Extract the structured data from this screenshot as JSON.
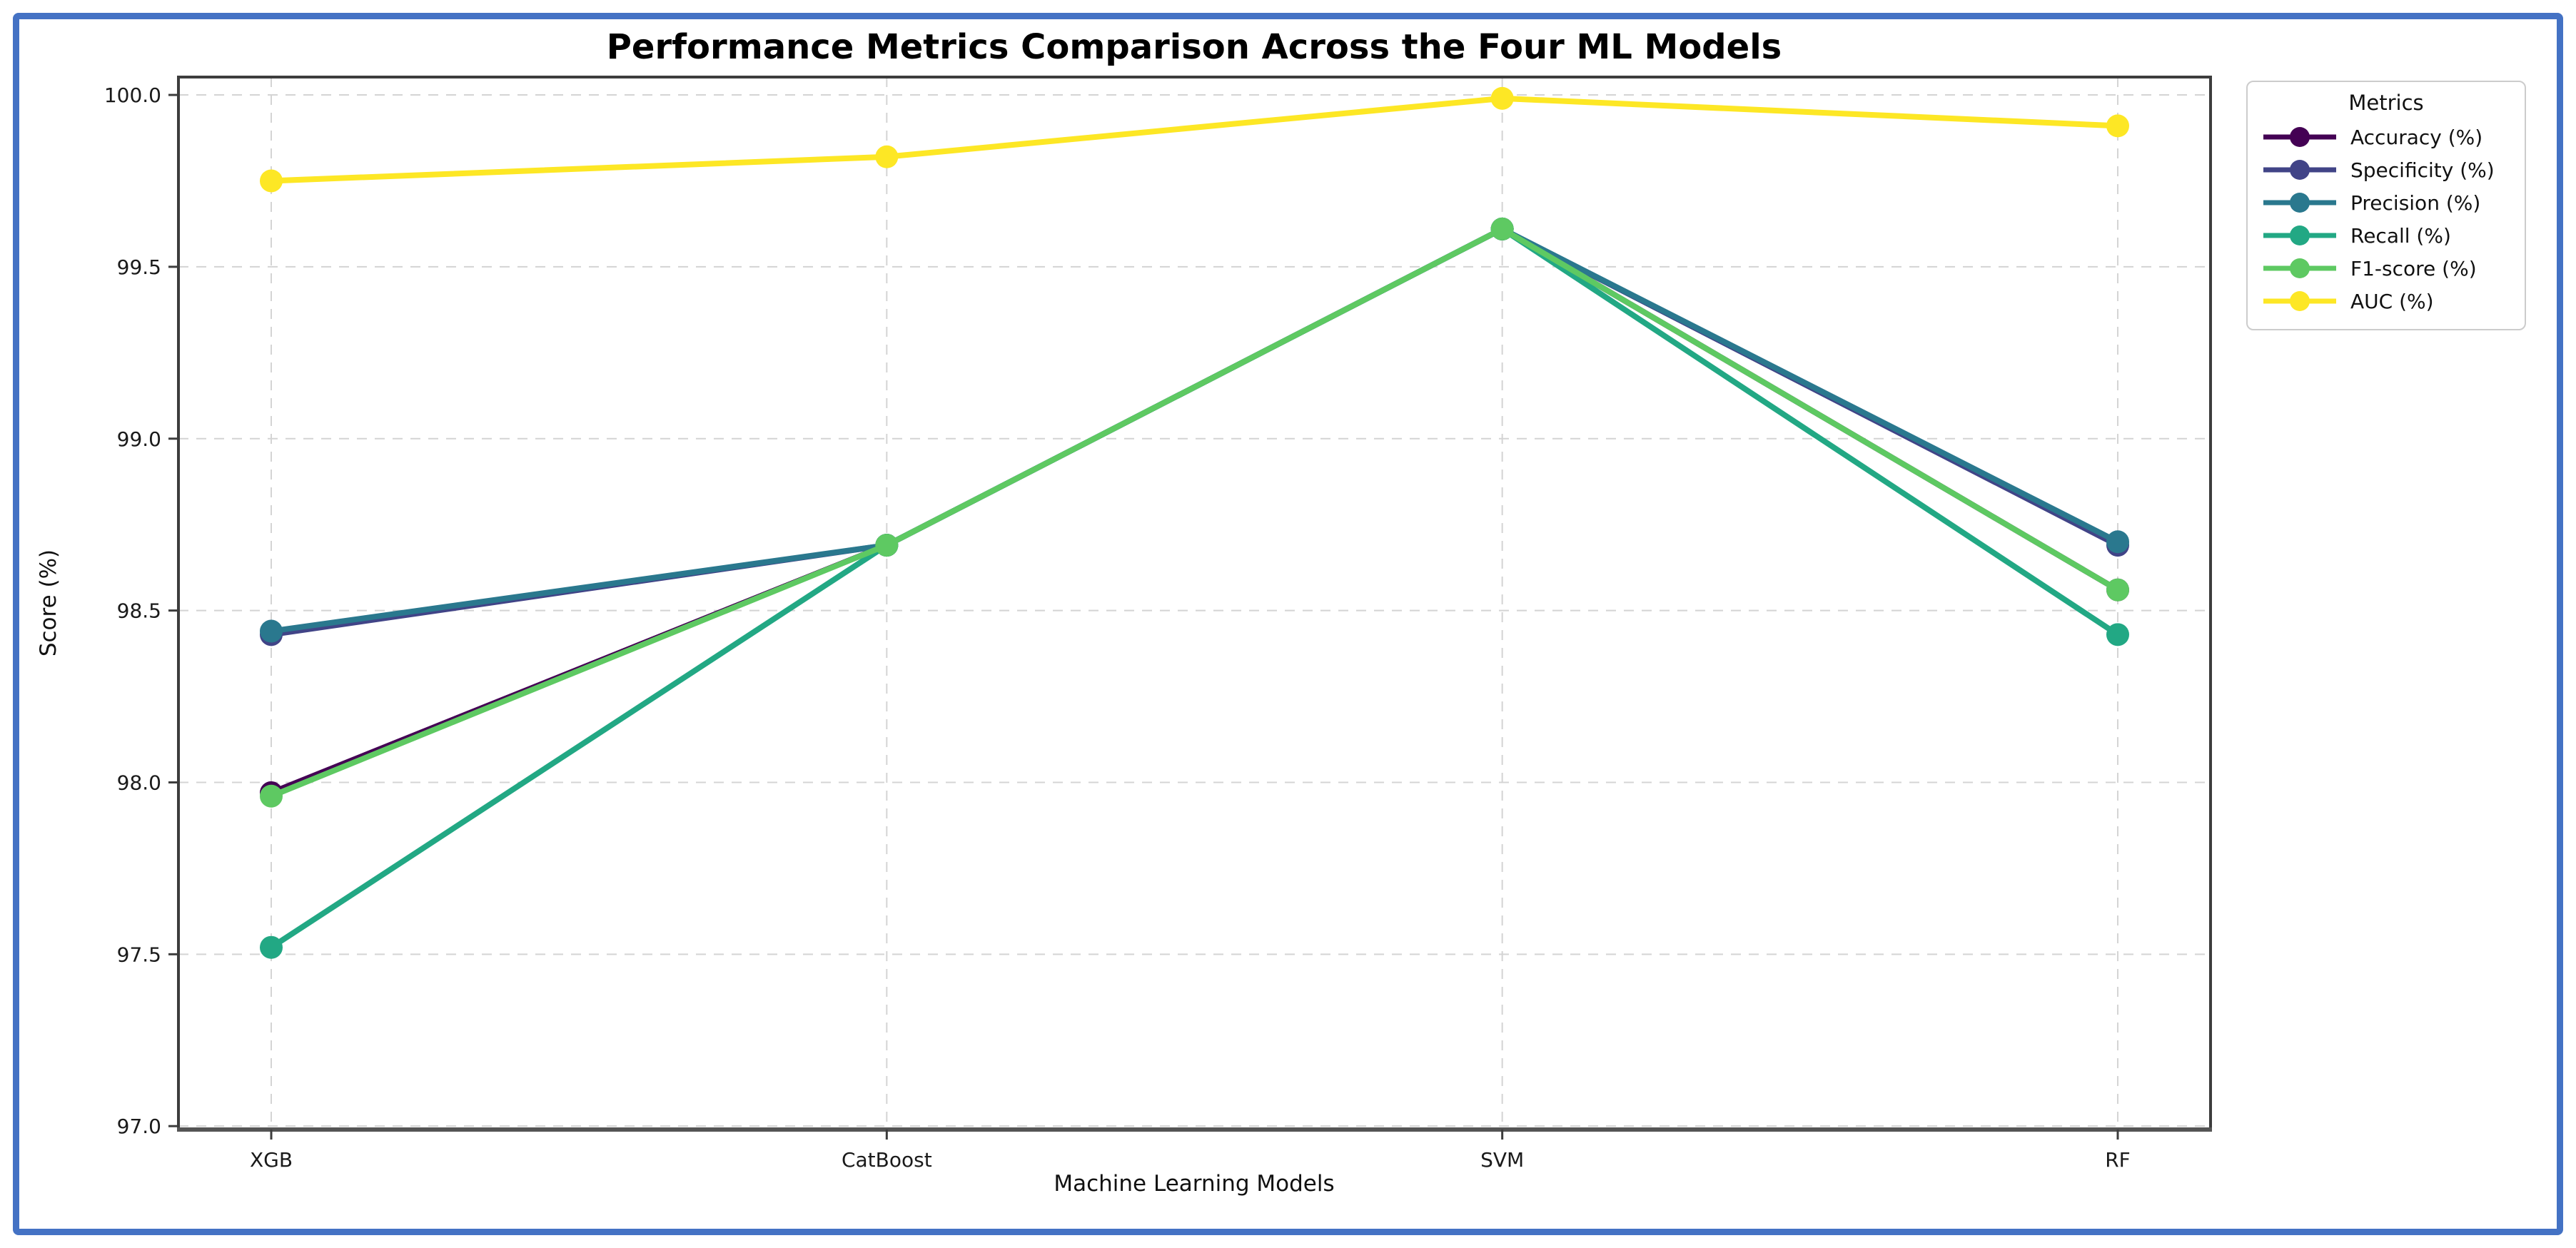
{
  "figure": {
    "border_color": "#4472c4",
    "background": "#ffffff",
    "grid_color": "#d4d4d4",
    "spine_color": "#3d3d3d"
  },
  "chart_data": {
    "type": "line",
    "title": "Performance Metrics Comparison Across the Four ML Models",
    "xlabel": "Machine Learning Models",
    "ylabel": "Score (%)",
    "categories": [
      "XGB",
      "CatBoost",
      "SVM",
      "RF"
    ],
    "series": [
      {
        "name": "Accuracy (%)",
        "color": "#440154",
        "values": [
          97.97,
          98.69,
          99.61,
          98.56
        ]
      },
      {
        "name": "Specificity (%)",
        "color": "#414487",
        "values": [
          98.43,
          98.69,
          99.61,
          98.69
        ]
      },
      {
        "name": "Precision (%)",
        "color": "#2a788e",
        "values": [
          98.44,
          98.69,
          99.61,
          98.7
        ]
      },
      {
        "name": "Recall (%)",
        "color": "#22a884",
        "values": [
          97.52,
          98.69,
          99.61,
          98.43
        ]
      },
      {
        "name": "F1-score (%)",
        "color": "#5ec962",
        "values": [
          97.96,
          98.69,
          99.61,
          98.56
        ]
      },
      {
        "name": "AUC (%)",
        "color": "#fde725",
        "values": [
          99.75,
          99.82,
          99.99,
          99.91
        ]
      }
    ],
    "yticks": [
      97.0,
      97.5,
      98.0,
      98.5,
      99.0,
      99.5,
      100.0
    ],
    "ytick_labels": [
      "97.0",
      "97.5",
      "98.0",
      "98.5",
      "99.0",
      "99.5",
      "100.0"
    ],
    "ylim": [
      96.99,
      100.052
    ],
    "grid": "dashed",
    "legend_title": "Metrics",
    "legend_position": "outside upper right"
  }
}
